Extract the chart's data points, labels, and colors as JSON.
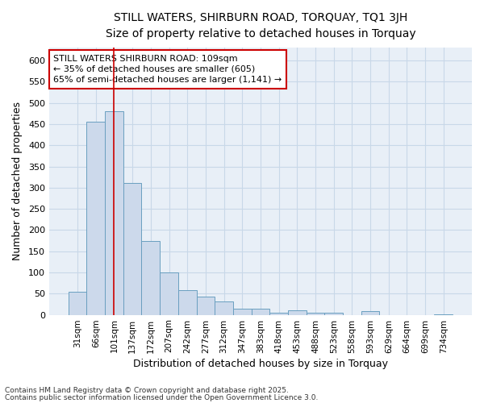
{
  "title_line1": "STILL WATERS, SHIRBURN ROAD, TORQUAY, TQ1 3JH",
  "title_line2": "Size of property relative to detached houses in Torquay",
  "xlabel": "Distribution of detached houses by size in Torquay",
  "ylabel": "Number of detached properties",
  "categories": [
    "31sqm",
    "66sqm",
    "101sqm",
    "137sqm",
    "172sqm",
    "207sqm",
    "242sqm",
    "277sqm",
    "312sqm",
    "347sqm",
    "383sqm",
    "418sqm",
    "453sqm",
    "488sqm",
    "523sqm",
    "558sqm",
    "593sqm",
    "629sqm",
    "664sqm",
    "699sqm",
    "734sqm"
  ],
  "values": [
    55,
    455,
    480,
    312,
    175,
    100,
    58,
    42,
    32,
    15,
    15,
    5,
    10,
    5,
    5,
    0,
    8,
    0,
    0,
    0,
    2
  ],
  "bar_color": "#ccd9eb",
  "bar_edge_color": "#6a9fc0",
  "grid_color": "#c8d8e8",
  "background_color": "#e8eff7",
  "vline_x_index": 2.0,
  "vline_color": "#cc0000",
  "annotation_text": "STILL WATERS SHIRBURN ROAD: 109sqm\n← 35% of detached houses are smaller (605)\n65% of semi-detached houses are larger (1,141) →",
  "annotation_box_color": "#ffffff",
  "annotation_box_edge": "#cc0000",
  "footnote1": "Contains HM Land Registry data © Crown copyright and database right 2025.",
  "footnote2": "Contains public sector information licensed under the Open Government Licence 3.0.",
  "ylim": [
    0,
    630
  ],
  "yticks": [
    0,
    50,
    100,
    150,
    200,
    250,
    300,
    350,
    400,
    450,
    500,
    550,
    600
  ]
}
